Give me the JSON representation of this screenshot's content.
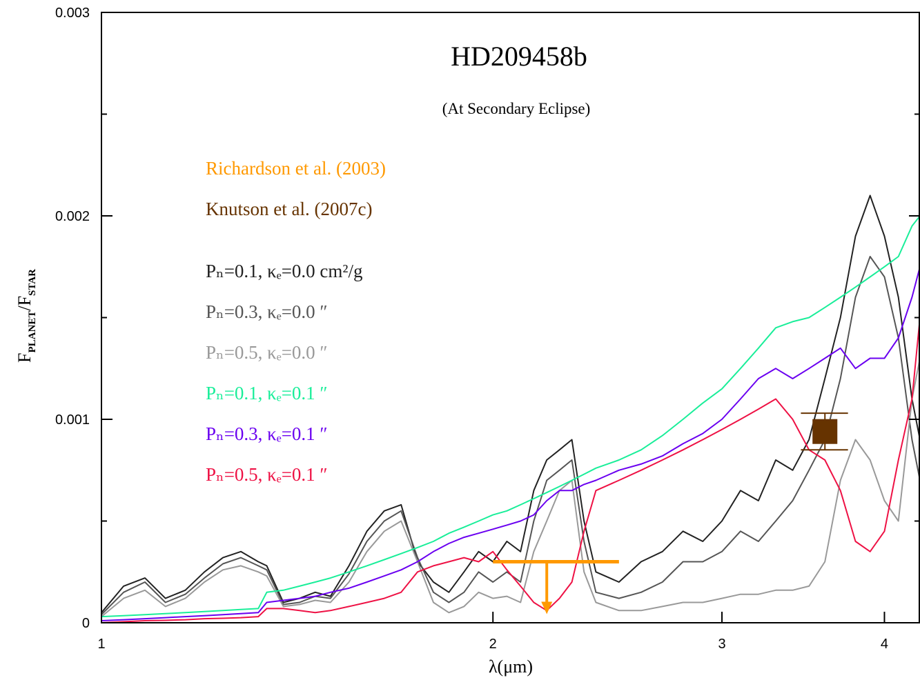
{
  "chart_data": {
    "type": "line",
    "title": "HD209458b",
    "subtitle": "(At Secondary Eclipse)",
    "xlabel": "λ(μm)",
    "ylabel": {
      "f1": "F",
      "sub1": "PLANET",
      "f2": "/F",
      "sub2": "STAR"
    },
    "xscale": "log",
    "xlim": [
      1,
      4.26
    ],
    "xticks": [
      1,
      2,
      3,
      4
    ],
    "ylim": [
      0,
      0.003
    ],
    "yticks": [
      0,
      0.001,
      0.002,
      0.003
    ],
    "yminor": [
      0.0005,
      0.0015,
      0.0025
    ],
    "x": [
      1.0,
      1.04,
      1.08,
      1.12,
      1.16,
      1.2,
      1.24,
      1.28,
      1.32,
      1.34,
      1.38,
      1.42,
      1.46,
      1.5,
      1.55,
      1.6,
      1.65,
      1.7,
      1.75,
      1.8,
      1.85,
      1.9,
      1.95,
      2.0,
      2.05,
      2.1,
      2.15,
      2.2,
      2.25,
      2.3,
      2.35,
      2.4,
      2.5,
      2.6,
      2.7,
      2.8,
      2.9,
      3.0,
      3.1,
      3.2,
      3.3,
      3.4,
      3.5,
      3.6,
      3.7,
      3.8,
      3.9,
      4.0,
      4.1,
      4.2,
      4.26
    ],
    "observations": [
      {
        "name": "Richardson et al. (2003)",
        "color": "#ff9900",
        "kind": "upper_limit",
        "x": 2.2,
        "xrange": [
          2.0,
          2.5
        ],
        "value": 0.0003
      },
      {
        "name": "Knutson et al. (2007c)",
        "color": "#663300",
        "kind": "point",
        "x": 3.6,
        "xrange": [
          3.45,
          3.75
        ],
        "value": 0.00094,
        "error": 9e-05
      }
    ],
    "series": [
      {
        "name": "Pₙ=0.1, κₑ=0.0 cm²/g",
        "color": "#222222",
        "values": [
          5e-05,
          0.00018,
          0.00022,
          0.00012,
          0.00016,
          0.00025,
          0.00032,
          0.00035,
          0.0003,
          0.00028,
          0.0001,
          0.00012,
          0.00015,
          0.00013,
          0.00028,
          0.00045,
          0.00055,
          0.00058,
          0.0003,
          0.0002,
          0.00015,
          0.00025,
          0.00035,
          0.0003,
          0.0004,
          0.00035,
          0.00065,
          0.0008,
          0.00085,
          0.0009,
          0.0005,
          0.00025,
          0.0002,
          0.0003,
          0.00035,
          0.00045,
          0.0004,
          0.0005,
          0.00065,
          0.0006,
          0.0008,
          0.00075,
          0.0009,
          0.0012,
          0.0015,
          0.0019,
          0.0021,
          0.0019,
          0.0016,
          0.0011,
          0.0009
        ]
      },
      {
        "name": "Pₙ=0.3, κₑ=0.0   ″",
        "color": "#555555",
        "values": [
          4e-05,
          0.00015,
          0.0002,
          0.0001,
          0.00014,
          0.00022,
          0.00029,
          0.00032,
          0.00028,
          0.00026,
          9e-05,
          0.0001,
          0.00013,
          0.00012,
          0.00024,
          0.0004,
          0.0005,
          0.00055,
          0.00032,
          0.00015,
          0.0001,
          0.00015,
          0.00025,
          0.0002,
          0.00025,
          0.0002,
          0.0005,
          0.0007,
          0.00075,
          0.0008,
          0.0004,
          0.00015,
          0.00012,
          0.00015,
          0.0002,
          0.0003,
          0.0003,
          0.00035,
          0.00045,
          0.0004,
          0.0005,
          0.0006,
          0.00075,
          0.0009,
          0.0012,
          0.0016,
          0.0018,
          0.0017,
          0.0014,
          0.0009,
          0.0007
        ]
      },
      {
        "name": "Pₙ=0.5, κₑ=0.0   ″",
        "color": "#999999",
        "values": [
          3e-05,
          0.00012,
          0.00016,
          8e-05,
          0.00012,
          0.0002,
          0.00026,
          0.00028,
          0.00025,
          0.00023,
          8e-05,
          9e-05,
          0.00011,
          0.0001,
          0.0002,
          0.00035,
          0.00045,
          0.0005,
          0.0003,
          0.0001,
          5e-05,
          8e-05,
          0.00015,
          0.00012,
          0.00013,
          0.0001,
          0.00035,
          0.0005,
          0.00065,
          0.0007,
          0.00025,
          0.0001,
          6e-05,
          6e-05,
          8e-05,
          0.0001,
          0.0001,
          0.00012,
          0.00014,
          0.00014,
          0.00016,
          0.00016,
          0.00018,
          0.0003,
          0.0007,
          0.0009,
          0.0008,
          0.0006,
          0.0005,
          0.0011,
          0.0013
        ]
      },
      {
        "name": "Pₙ=0.1, κₑ=0.1   ″",
        "color": "#19ee99",
        "values": [
          3e-05,
          3.5e-05,
          4e-05,
          4.5e-05,
          5e-05,
          5.5e-05,
          6e-05,
          6.5e-05,
          7e-05,
          0.00015,
          0.00016,
          0.00018,
          0.0002,
          0.00022,
          0.00025,
          0.00028,
          0.00031,
          0.00034,
          0.00037,
          0.0004,
          0.00044,
          0.00047,
          0.0005,
          0.00053,
          0.00055,
          0.00058,
          0.00061,
          0.00064,
          0.00067,
          0.0007,
          0.00073,
          0.00076,
          0.0008,
          0.00085,
          0.00092,
          0.001,
          0.00108,
          0.00115,
          0.00125,
          0.00135,
          0.00145,
          0.00148,
          0.0015,
          0.00155,
          0.0016,
          0.00165,
          0.0017,
          0.00175,
          0.0018,
          0.00195,
          0.002
        ]
      },
      {
        "name": "Pₙ=0.3, κₑ=0.1   ″",
        "color": "#6a00f0",
        "values": [
          1e-05,
          1.5e-05,
          2e-05,
          2.5e-05,
          3e-05,
          3.5e-05,
          4e-05,
          4.5e-05,
          5e-05,
          0.0001,
          0.00011,
          0.00012,
          0.00013,
          0.00015,
          0.00017,
          0.0002,
          0.00023,
          0.00026,
          0.0003,
          0.00035,
          0.00039,
          0.00042,
          0.00044,
          0.00046,
          0.00048,
          0.0005,
          0.00053,
          0.0006,
          0.00065,
          0.00065,
          0.00068,
          0.0007,
          0.00075,
          0.00078,
          0.00082,
          0.00088,
          0.00093,
          0.001,
          0.0011,
          0.0012,
          0.00125,
          0.0012,
          0.00125,
          0.0013,
          0.00135,
          0.00125,
          0.0013,
          0.0013,
          0.0014,
          0.0016,
          0.00175
        ]
      },
      {
        "name": "Pₙ=0.5, κₑ=0.1   ″",
        "color": "#ee1144",
        "values": [
          0.0,
          5e-06,
          1e-05,
          1.2e-05,
          1.5e-05,
          2e-05,
          2.2e-05,
          2.5e-05,
          3e-05,
          7e-05,
          7e-05,
          6e-05,
          5e-05,
          6e-05,
          8e-05,
          0.0001,
          0.00012,
          0.00015,
          0.00025,
          0.00028,
          0.0003,
          0.00032,
          0.0003,
          0.00035,
          0.00026,
          0.00018,
          0.0001,
          6e-05,
          0.00012,
          0.0002,
          0.00045,
          0.00065,
          0.0007,
          0.00075,
          0.0008,
          0.00085,
          0.0009,
          0.00095,
          0.001,
          0.00105,
          0.0011,
          0.001,
          0.00085,
          0.0008,
          0.00065,
          0.0004,
          0.00035,
          0.00045,
          0.0008,
          0.0011,
          0.0015
        ]
      }
    ]
  }
}
